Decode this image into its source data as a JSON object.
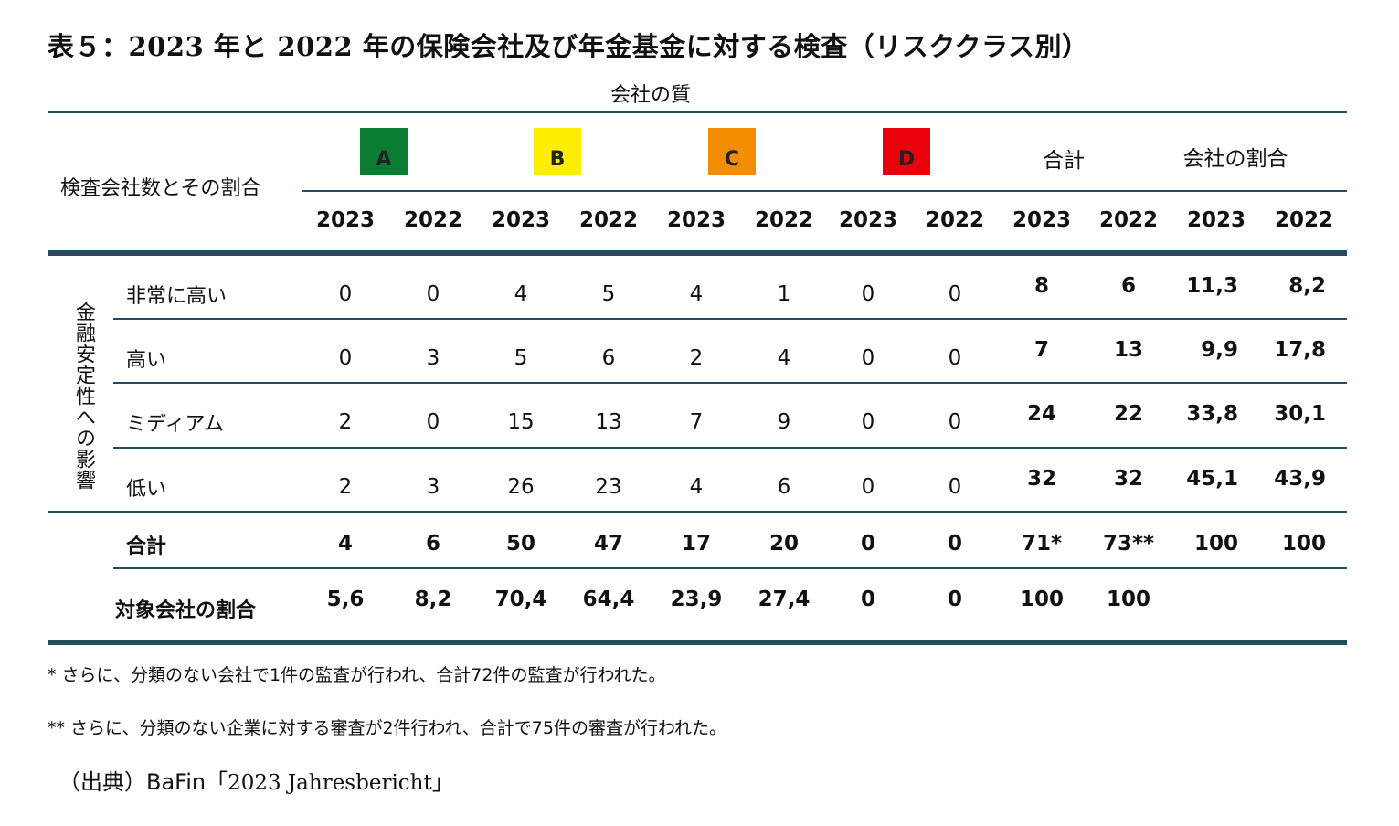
{
  "title": "表５：2023 年と 2022 年の保険会社及び年金基金に対する検査（リスククラス別）",
  "quality_header": "会社の質",
  "row_header": "検査会社数とその割合",
  "grades": [
    {
      "label": "A",
      "color": "#0a7d33"
    },
    {
      "label": "B",
      "color": "#ffee00"
    },
    {
      "label": "C",
      "color": "#f28c00"
    },
    {
      "label": "D",
      "color": "#e8000b"
    }
  ],
  "total_header": "合計",
  "share_header": "会社の割合",
  "years": [
    "2023",
    "2022",
    "2023",
    "2022",
    "2023",
    "2022",
    "2023",
    "2022",
    "2023",
    "2022",
    "2023",
    "2022"
  ],
  "vertical_label": "金融安定性への影響",
  "rows": [
    {
      "label": "非常に高い",
      "values": [
        "0",
        "0",
        "4",
        "5",
        "4",
        "1",
        "0",
        "0"
      ],
      "totals": [
        "8",
        "6",
        "11,3",
        "8,2"
      ]
    },
    {
      "label": "高い",
      "values": [
        "0",
        "3",
        "5",
        "6",
        "2",
        "4",
        "0",
        "0"
      ],
      "totals": [
        "7",
        "13",
        "9,9",
        "17,8"
      ]
    },
    {
      "label": "ミディアム",
      "values": [
        "2",
        "0",
        "15",
        "13",
        "7",
        "9",
        "0",
        "0"
      ],
      "totals": [
        "24",
        "22",
        "33,8",
        "30,1"
      ]
    },
    {
      "label": "低い",
      "values": [
        "2",
        "3",
        "26",
        "23",
        "4",
        "6",
        "0",
        "0"
      ],
      "totals": [
        "32",
        "32",
        "45,1",
        "43,9"
      ]
    }
  ],
  "total_row": {
    "label": "合計",
    "values": [
      "4",
      "6",
      "50",
      "47",
      "17",
      "20",
      "0",
      "0",
      "71*",
      "73**",
      "100",
      "100"
    ]
  },
  "share_row": {
    "label": "対象会社の割合",
    "values": [
      "5,6",
      "8,2",
      "70,4",
      "64,4",
      "23,9",
      "27,4",
      "0",
      "0",
      "100",
      "100"
    ]
  },
  "notes": [
    "*  さらに、分類のない会社で1件の監査が行われ、合計72件の監査が行われた。",
    "**  さらに、分類のない企業に対する審査が2件行われ、合計で75件の審査が行われた。"
  ],
  "source_prefix": "（出典）BaFin「",
  "source_doc": "2023 Jahresbericht",
  "source_suffix": "」"
}
